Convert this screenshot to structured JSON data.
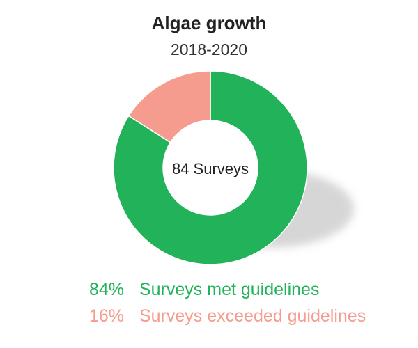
{
  "chart_data": {
    "type": "pie",
    "title": "Algae growth",
    "subtitle": "2018-2020",
    "center_label": "84 Surveys",
    "series": [
      {
        "name": "Surveys met guidelines",
        "value": 84,
        "percent_label": "84%",
        "color": "#22b25a"
      },
      {
        "name": "Surveys exceeded guidelines",
        "value": 16,
        "percent_label": "16%",
        "color": "#f59c8e"
      }
    ]
  }
}
